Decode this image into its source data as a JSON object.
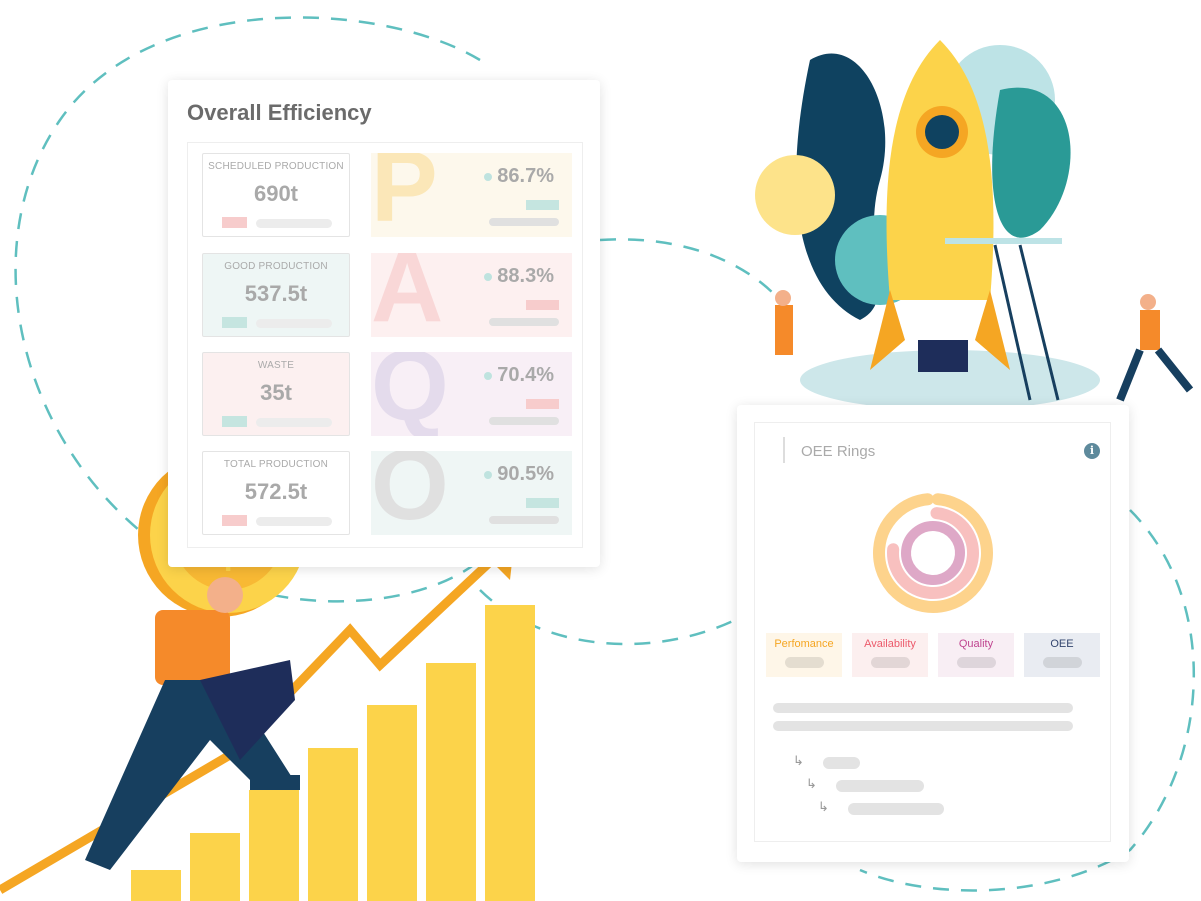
{
  "efficiency": {
    "title": "Overall Efficiency",
    "metrics": [
      {
        "label": "SCHEDULED PRODUCTION",
        "value": "690t",
        "bg": "#ffffff",
        "swatch": "#f7cccc"
      },
      {
        "label": "GOOD PRODUCTION",
        "value": "537.5t",
        "bg": "#eef6f5",
        "swatch": "#c5e5e0"
      },
      {
        "label": "WASTE",
        "value": "35t",
        "bg": "#fcf0f0",
        "swatch": "#c5e5e0"
      },
      {
        "label": "TOTAL PRODUCTION",
        "value": "572.5t",
        "bg": "#ffffff",
        "swatch": "#f7cccc"
      }
    ],
    "factors": [
      {
        "letter": "P",
        "percent": "86.7%",
        "bg": "#fdf8ec",
        "color": "#fbe7b8",
        "swatch": "#c5e5e0"
      },
      {
        "letter": "A",
        "percent": "88.3%",
        "bg": "#fdf0f0",
        "color": "#f9d7d7",
        "swatch": "#f7cccc"
      },
      {
        "letter": "Q",
        "percent": "70.4%",
        "bg": "#f8eff6",
        "color": "#e4dbec",
        "swatch": "#f7cccc"
      },
      {
        "letter": "O",
        "percent": "90.5%",
        "bg": "#eff6f5",
        "color": "#e0e0e0",
        "swatch": "#c5e5e0"
      }
    ]
  },
  "oee": {
    "title": "OEE Rings",
    "info_icon": "info-icon",
    "rings": [
      {
        "name": "Perfomance",
        "fraction": 0.97,
        "color": "#fdd38c"
      },
      {
        "name": "Availability",
        "fraction": 0.75,
        "color": "#f8c0bf"
      },
      {
        "name": "Quality",
        "fraction": 1.0,
        "color": "#dea8c7"
      }
    ],
    "legend": [
      {
        "label": "Perfomance",
        "color": "#f5a623",
        "bg": "#fef6e8"
      },
      {
        "label": "Availability",
        "color": "#ec5a6b",
        "bg": "#fcefef"
      },
      {
        "label": "Quality",
        "color": "#c0448f",
        "bg": "#f8eef4"
      },
      {
        "label": "OEE",
        "color": "#34466f",
        "bg": "#e9ecf2"
      }
    ]
  },
  "colors": {
    "teal": "#5fbfbf",
    "yellow": "#fcd34a",
    "orange": "#f5a623",
    "navy": "#173f5f"
  }
}
